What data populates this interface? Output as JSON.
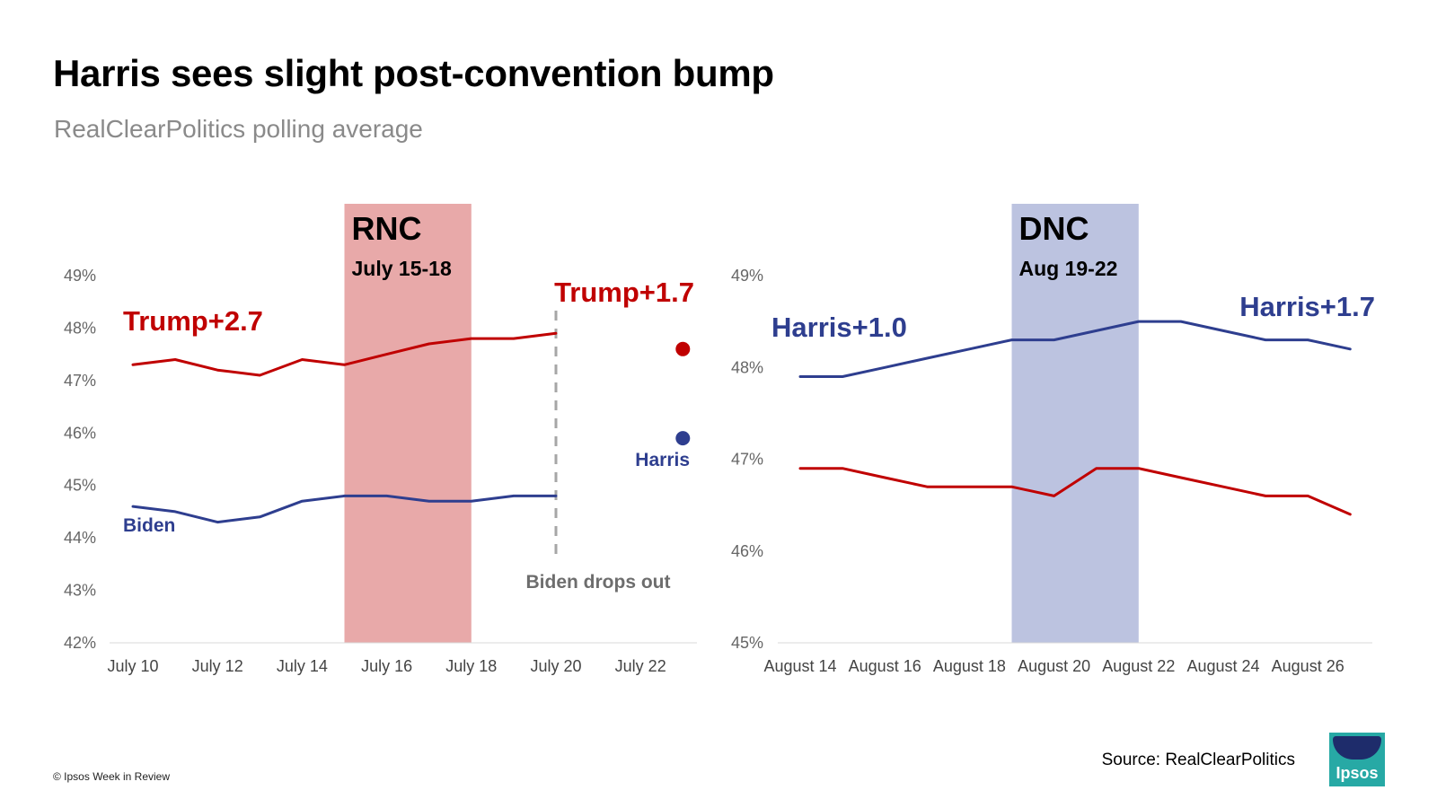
{
  "title": "Harris sees slight post-convention bump",
  "subtitle": "RealClearPolitics polling average",
  "footer": {
    "copyright": "© Ipsos Week in Review",
    "source": "Source: RealClearPolitics",
    "logo_text": "Ipsos"
  },
  "colors": {
    "trump": "#c00000",
    "dem": "#2e3e8f",
    "rnc_band": "#e8a9a9",
    "dnc_band": "#bcc3e0",
    "grid": "#d9d9d9",
    "dashed": "#a6a6a6"
  },
  "chart_data": [
    {
      "type": "line",
      "x_ticks": [
        "July 10",
        "July 12",
        "July 14",
        "July 16",
        "July 18",
        "July 20",
        "July 22"
      ],
      "ylim": [
        42,
        49
      ],
      "y_ticks": [
        "42%",
        "43%",
        "44%",
        "45%",
        "46%",
        "47%",
        "48%",
        "49%"
      ],
      "series": [
        {
          "name": "Trump",
          "color": "#c00000",
          "x": [
            "July 10",
            "July 11",
            "July 12",
            "July 13",
            "July 14",
            "July 15",
            "July 16",
            "July 17",
            "July 18",
            "July 19",
            "July 20"
          ],
          "values": [
            47.3,
            47.4,
            47.2,
            47.1,
            47.4,
            47.3,
            47.5,
            47.7,
            47.8,
            47.8,
            47.9
          ]
        },
        {
          "name": "Biden",
          "color": "#2e3e8f",
          "x": [
            "July 10",
            "July 11",
            "July 12",
            "July 13",
            "July 14",
            "July 15",
            "July 16",
            "July 17",
            "July 18",
            "July 19",
            "July 20"
          ],
          "values": [
            44.6,
            44.5,
            44.3,
            44.4,
            44.7,
            44.8,
            44.8,
            44.7,
            44.7,
            44.8,
            44.8
          ]
        }
      ],
      "points": [
        {
          "series": "Trump",
          "x": "July 23",
          "value": 47.6,
          "color": "#c00000"
        },
        {
          "name": "Harris",
          "x": "July 23",
          "value": 45.9,
          "color": "#2e3e8f"
        }
      ],
      "shaded_band": {
        "label": "RNC",
        "sublabel": "July 15-18",
        "from": "July 15",
        "to": "July 18"
      },
      "event_line": {
        "x": "July 20",
        "label": "Biden drops out"
      },
      "annotations": [
        {
          "text": "Trump+2.7",
          "color": "#c00000"
        },
        {
          "text": "Trump+1.7",
          "color": "#c00000"
        },
        {
          "text": "Biden",
          "color": "#2e3e8f"
        },
        {
          "text": "Harris",
          "color": "#2e3e8f"
        }
      ]
    },
    {
      "type": "line",
      "x_ticks": [
        "August 14",
        "August 16",
        "August 18",
        "August 20",
        "August 22",
        "August 24",
        "August 26"
      ],
      "ylim": [
        45,
        49
      ],
      "y_ticks": [
        "45%",
        "46%",
        "47%",
        "48%",
        "49%"
      ],
      "series": [
        {
          "name": "Harris",
          "color": "#2e3e8f",
          "x": [
            "August 14",
            "August 15",
            "August 16",
            "August 17",
            "August 18",
            "August 19",
            "August 20",
            "August 21",
            "August 22",
            "August 23",
            "August 24",
            "August 25",
            "August 26",
            "August 27"
          ],
          "values": [
            47.9,
            47.9,
            48.0,
            48.1,
            48.2,
            48.3,
            48.3,
            48.4,
            48.5,
            48.5,
            48.4,
            48.3,
            48.3,
            48.2
          ]
        },
        {
          "name": "Trump",
          "color": "#c00000",
          "x": [
            "August 14",
            "August 15",
            "August 16",
            "August 17",
            "August 18",
            "August 19",
            "August 20",
            "August 21",
            "August 22",
            "August 23",
            "August 24",
            "August 25",
            "August 26",
            "August 27"
          ],
          "values": [
            46.9,
            46.9,
            46.8,
            46.7,
            46.7,
            46.7,
            46.6,
            46.9,
            46.9,
            46.8,
            46.7,
            46.6,
            46.6,
            46.4
          ]
        }
      ],
      "shaded_band": {
        "label": "DNC",
        "sublabel": "Aug 19-22",
        "from": "August 19",
        "to": "August 22"
      },
      "annotations": [
        {
          "text": "Harris+1.0",
          "color": "#2e3e8f"
        },
        {
          "text": "Harris+1.7",
          "color": "#2e3e8f"
        }
      ]
    }
  ]
}
